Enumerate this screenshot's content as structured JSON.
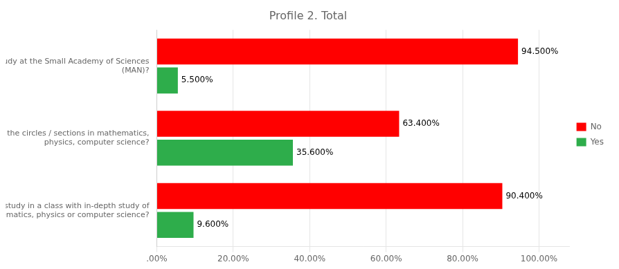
{
  "chart_data": {
    "type": "bar",
    "orientation": "horizontal",
    "title": "Profile 2. Total",
    "categories": [
      "Did you study at the Small Academy of Sciences\n(MAN)?",
      "Did you attend the circles / sections in mathematics,\nphysics, computer science?",
      "Did you study in a class with in-depth study of\nmathematics, physics or computer science?"
    ],
    "series": [
      {
        "name": "No",
        "color": "#FF0000",
        "values": [
          94.5,
          63.4,
          90.4
        ],
        "value_labels": [
          "94.500%",
          "63.400%",
          "90.400%"
        ]
      },
      {
        "name": "Yes",
        "color": "#2EAD4B",
        "values": [
          5.5,
          35.6,
          9.6
        ],
        "value_labels": [
          "5.500%",
          "35.600%",
          "9.600%"
        ]
      }
    ],
    "xlim": [
      0,
      108
    ],
    "xticks": [
      {
        "value": 0,
        "label": ".00%"
      },
      {
        "value": 20,
        "label": "20.00%"
      },
      {
        "value": 40,
        "label": "40.00%"
      },
      {
        "value": 60,
        "label": "60.00%"
      },
      {
        "value": 80,
        "label": "80.00%"
      },
      {
        "value": 100,
        "label": "100.00%"
      }
    ],
    "grid": true,
    "legend": "right",
    "data_labels": true
  }
}
